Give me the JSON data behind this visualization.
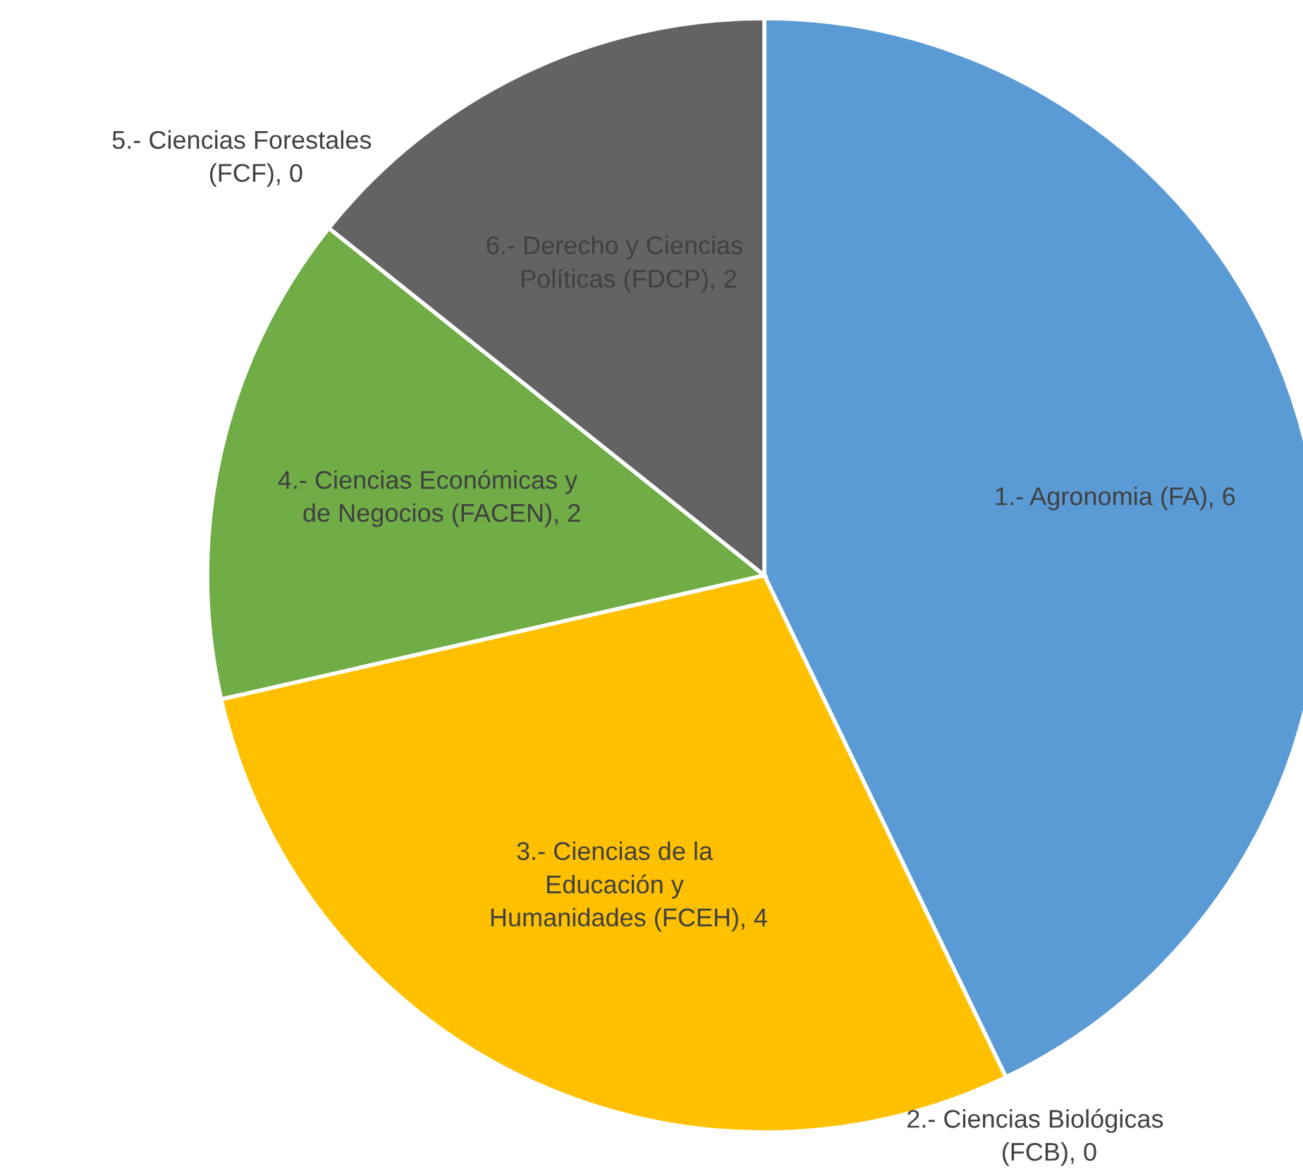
{
  "chart_data": {
    "type": "pie",
    "categories": [
      "1.- Agronomia (FA)",
      "2.- Ciencias Biológicas\n(FCB)",
      "3.- Ciencias de la\nEducación y\nHumanidades (FCEH)",
      "4.- Ciencias Económicas y\nde Negocios (FACEN)",
      "5.- Ciencias Forestales\n(FCF)",
      "6.- Derecho y Ciencias\nPolíticas (FDCP)"
    ],
    "values": [
      6,
      0,
      4,
      2,
      0,
      2
    ],
    "value_labels": [
      ", 6",
      ", 0",
      ", 4",
      ", 2",
      ", 0",
      ", 2"
    ],
    "colors": [
      "#5b9bd5",
      "#ed7d31",
      "#ffc000",
      "#70ad47",
      "#4472c4",
      "#636363"
    ]
  }
}
